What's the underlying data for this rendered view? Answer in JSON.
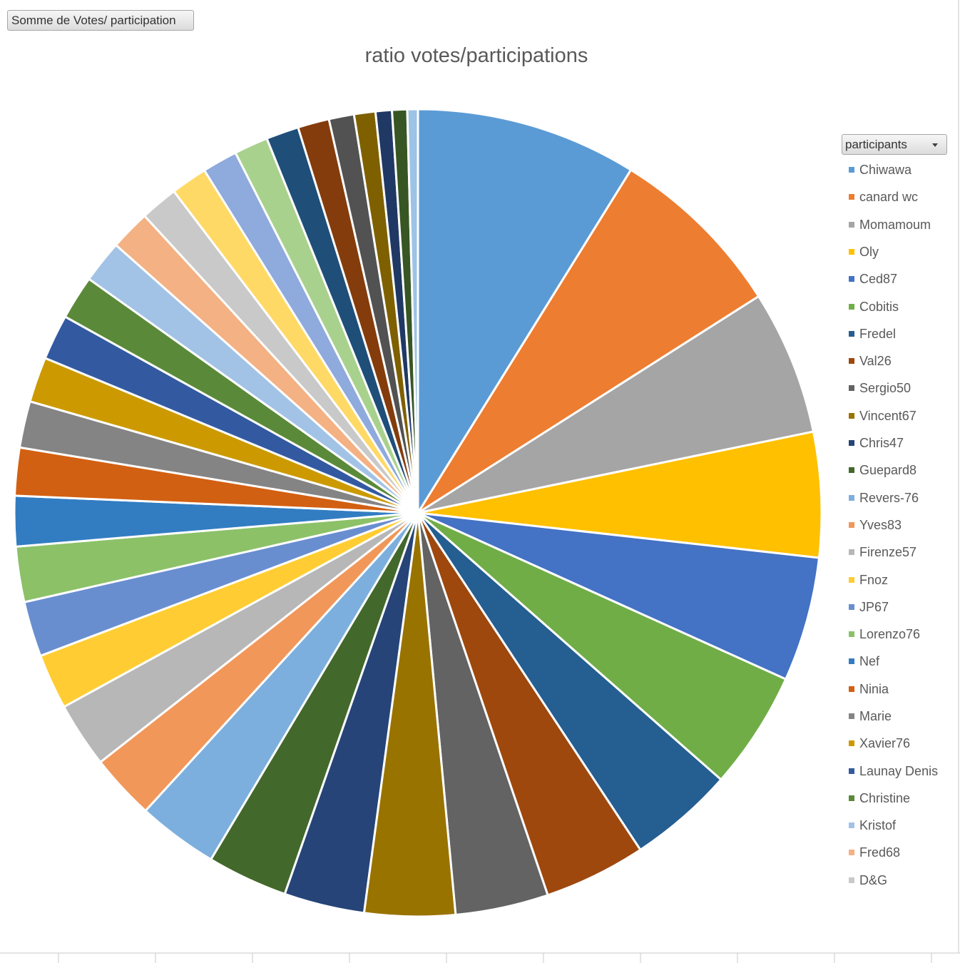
{
  "field_button": {
    "label": "Somme de Votes/ participation"
  },
  "legend_button": {
    "label": "participants"
  },
  "chart_data": {
    "type": "pie",
    "title": "ratio votes/participations",
    "legend_position": "right",
    "categories": [
      "Chiwawa",
      "canard wc",
      "Momamoum",
      "Oly",
      "Ced87",
      "Cobitis",
      "Fredel",
      "Val26",
      "Sergio50",
      "Vincent67",
      "Chris47",
      "Guepard8",
      "Revers-76",
      "Yves83",
      "Firenze57",
      "Fnoz",
      "JP67",
      "Lorenzo76",
      "Nef",
      "Ninia",
      "Marie",
      "Xavier76",
      "Launay Denis",
      "Christine",
      "Kristof",
      "Fred68",
      "D&G"
    ],
    "slices": [
      {
        "label": "Chiwawa",
        "value": 8.79,
        "color": "#5B9BD5"
      },
      {
        "label": "canard wc",
        "value": 7.1,
        "color": "#ED7D31"
      },
      {
        "label": "Momamoum",
        "value": 5.75,
        "color": "#A5A5A5"
      },
      {
        "label": "Oly",
        "value": 4.97,
        "color": "#FFC000"
      },
      {
        "label": "Ced87",
        "value": 4.95,
        "color": "#4472C4"
      },
      {
        "label": "Cobitis",
        "value": 4.7,
        "color": "#70AD47"
      },
      {
        "label": "Fredel",
        "value": 4.2,
        "color": "#255E91"
      },
      {
        "label": "Val26",
        "value": 4.05,
        "color": "#9E480E"
      },
      {
        "label": "Sergio50",
        "value": 3.7,
        "color": "#636363"
      },
      {
        "label": "Vincent67",
        "value": 3.6,
        "color": "#997300"
      },
      {
        "label": "Chris47",
        "value": 3.2,
        "color": "#264478"
      },
      {
        "label": "Guepard8",
        "value": 3.2,
        "color": "#43682B"
      },
      {
        "label": "Revers-76",
        "value": 3.2,
        "color": "#7CAFDD"
      },
      {
        "label": "Yves83",
        "value": 2.6,
        "color": "#F1975A"
      },
      {
        "label": "Firenze57",
        "value": 2.6,
        "color": "#B7B7B7"
      },
      {
        "label": "Fnoz",
        "value": 2.2,
        "color": "#FFCD33"
      },
      {
        "label": "JP67",
        "value": 2.2,
        "color": "#698ED0"
      },
      {
        "label": "Lorenzo76",
        "value": 2.2,
        "color": "#8CC168"
      },
      {
        "label": "Nef",
        "value": 2.0,
        "color": "#327DC2"
      },
      {
        "label": "Ninia",
        "value": 1.9,
        "color": "#D26012"
      },
      {
        "label": "Marie",
        "value": 1.85,
        "color": "#848484"
      },
      {
        "label": "Xavier76",
        "value": 1.8,
        "color": "#CC9A00"
      },
      {
        "label": "Launay Denis",
        "value": 1.8,
        "color": "#335AA1"
      },
      {
        "label": "Christine",
        "value": 1.75,
        "color": "#5A8A39"
      },
      {
        "label": "Kristof",
        "value": 1.7,
        "color": "#A2C3E6"
      },
      {
        "label": "Fred68",
        "value": 1.6,
        "color": "#F4B183"
      },
      {
        "label": "D&G",
        "value": 1.5,
        "color": "#C9C9C9"
      },
      {
        "label": "",
        "value": 1.45,
        "color": "#FFD966"
      },
      {
        "label": "",
        "value": 1.4,
        "color": "#8FAADC"
      },
      {
        "label": "",
        "value": 1.35,
        "color": "#A9D18E"
      },
      {
        "label": "",
        "value": 1.3,
        "color": "#1F4E79"
      },
      {
        "label": "",
        "value": 1.25,
        "color": "#843C0C"
      },
      {
        "label": "",
        "value": 1.0,
        "color": "#525252"
      },
      {
        "label": "",
        "value": 0.85,
        "color": "#7F6000"
      },
      {
        "label": "",
        "value": 0.65,
        "color": "#203864"
      },
      {
        "label": "",
        "value": 0.6,
        "color": "#375623"
      },
      {
        "label": "",
        "value": 0.42,
        "color": "#9DC3E6"
      }
    ]
  }
}
